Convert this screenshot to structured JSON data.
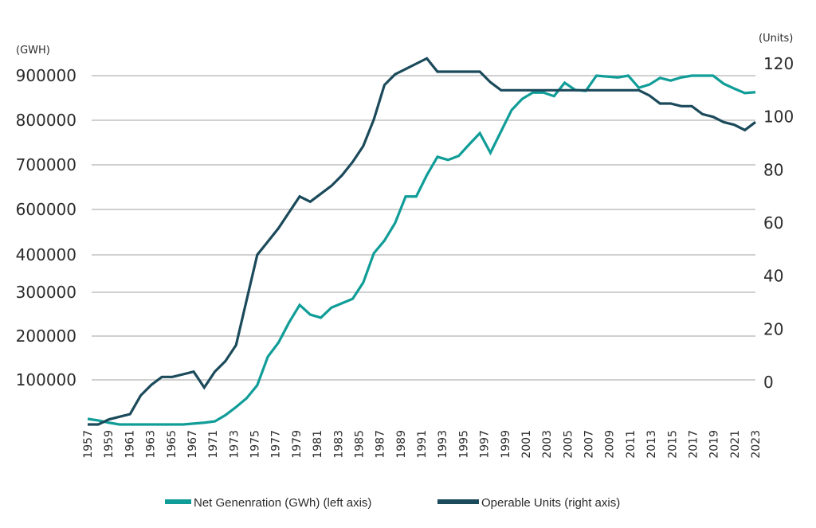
{
  "chart_data": {
    "type": "line",
    "title": "",
    "left_axis_unit": "(GWH)",
    "right_axis_unit": "(Units)",
    "left_ticks": [
      "900000",
      "800000",
      "700000",
      "600000",
      "400000",
      "300000",
      "200000",
      "100000"
    ],
    "left_tick_values": [
      900000,
      800000,
      700000,
      600000,
      400000,
      300000,
      200000,
      100000
    ],
    "right_ticks": [
      "120",
      "100",
      "80",
      "60",
      "40",
      "20",
      "0"
    ],
    "right_tick_values": [
      120,
      100,
      80,
      60,
      40,
      20,
      0
    ],
    "x_labels": [
      "1957",
      "1959",
      "1961",
      "1963",
      "1965",
      "1967",
      "1971",
      "1973",
      "1975",
      "1977",
      "1979",
      "1981",
      "1983",
      "1985",
      "1987",
      "1989",
      "1991",
      "1993",
      "1995",
      "1997",
      "1999",
      "2001",
      "2003",
      "2005",
      "2007",
      "2009",
      "2011",
      "2013",
      "2015",
      "2017",
      "2019",
      "2021",
      "2023"
    ],
    "grid": true,
    "legend_position": "bottom",
    "series": [
      {
        "name": "Net Genenration (GWh) (left axis)",
        "axis": "left",
        "color": "#109d98",
        "values": [
          12500,
          9000,
          4000,
          0,
          0,
          0,
          0,
          0,
          0,
          0,
          2000,
          4000,
          7000,
          21000,
          39000,
          59000,
          88000,
          153000,
          185000,
          231000,
          271000,
          249000,
          242000,
          265000,
          275000,
          285000,
          326000,
          407000,
          463000,
          540000,
          629000,
          629000,
          677000,
          718000,
          711000,
          720000,
          746000,
          771000,
          727000,
          775000,
          823000,
          848000,
          862000,
          862000,
          854000,
          884000,
          868000,
          866000,
          900000,
          898000,
          896000,
          900000,
          873000,
          880000,
          895000,
          889000,
          896000,
          900000,
          900000,
          900000,
          882000,
          871000,
          861000,
          863000
        ]
      },
      {
        "name": "Operable Units (right axis)",
        "axis": "right",
        "color": "#1b4a5b",
        "values": [
          -16,
          -16,
          -14,
          -13,
          -12,
          -5,
          -1,
          2,
          2,
          3,
          4,
          -2,
          4,
          8,
          14,
          31,
          48,
          53,
          58,
          64,
          70,
          68,
          71,
          74,
          78,
          83,
          89,
          99,
          112,
          116,
          118,
          120,
          122,
          117,
          117,
          117,
          117,
          117,
          113,
          110,
          110,
          110,
          110,
          110,
          110,
          110,
          110,
          110,
          110,
          110,
          110,
          110,
          110,
          108,
          105,
          105,
          104,
          104,
          101,
          100,
          98,
          97,
          95,
          98
        ]
      }
    ]
  }
}
